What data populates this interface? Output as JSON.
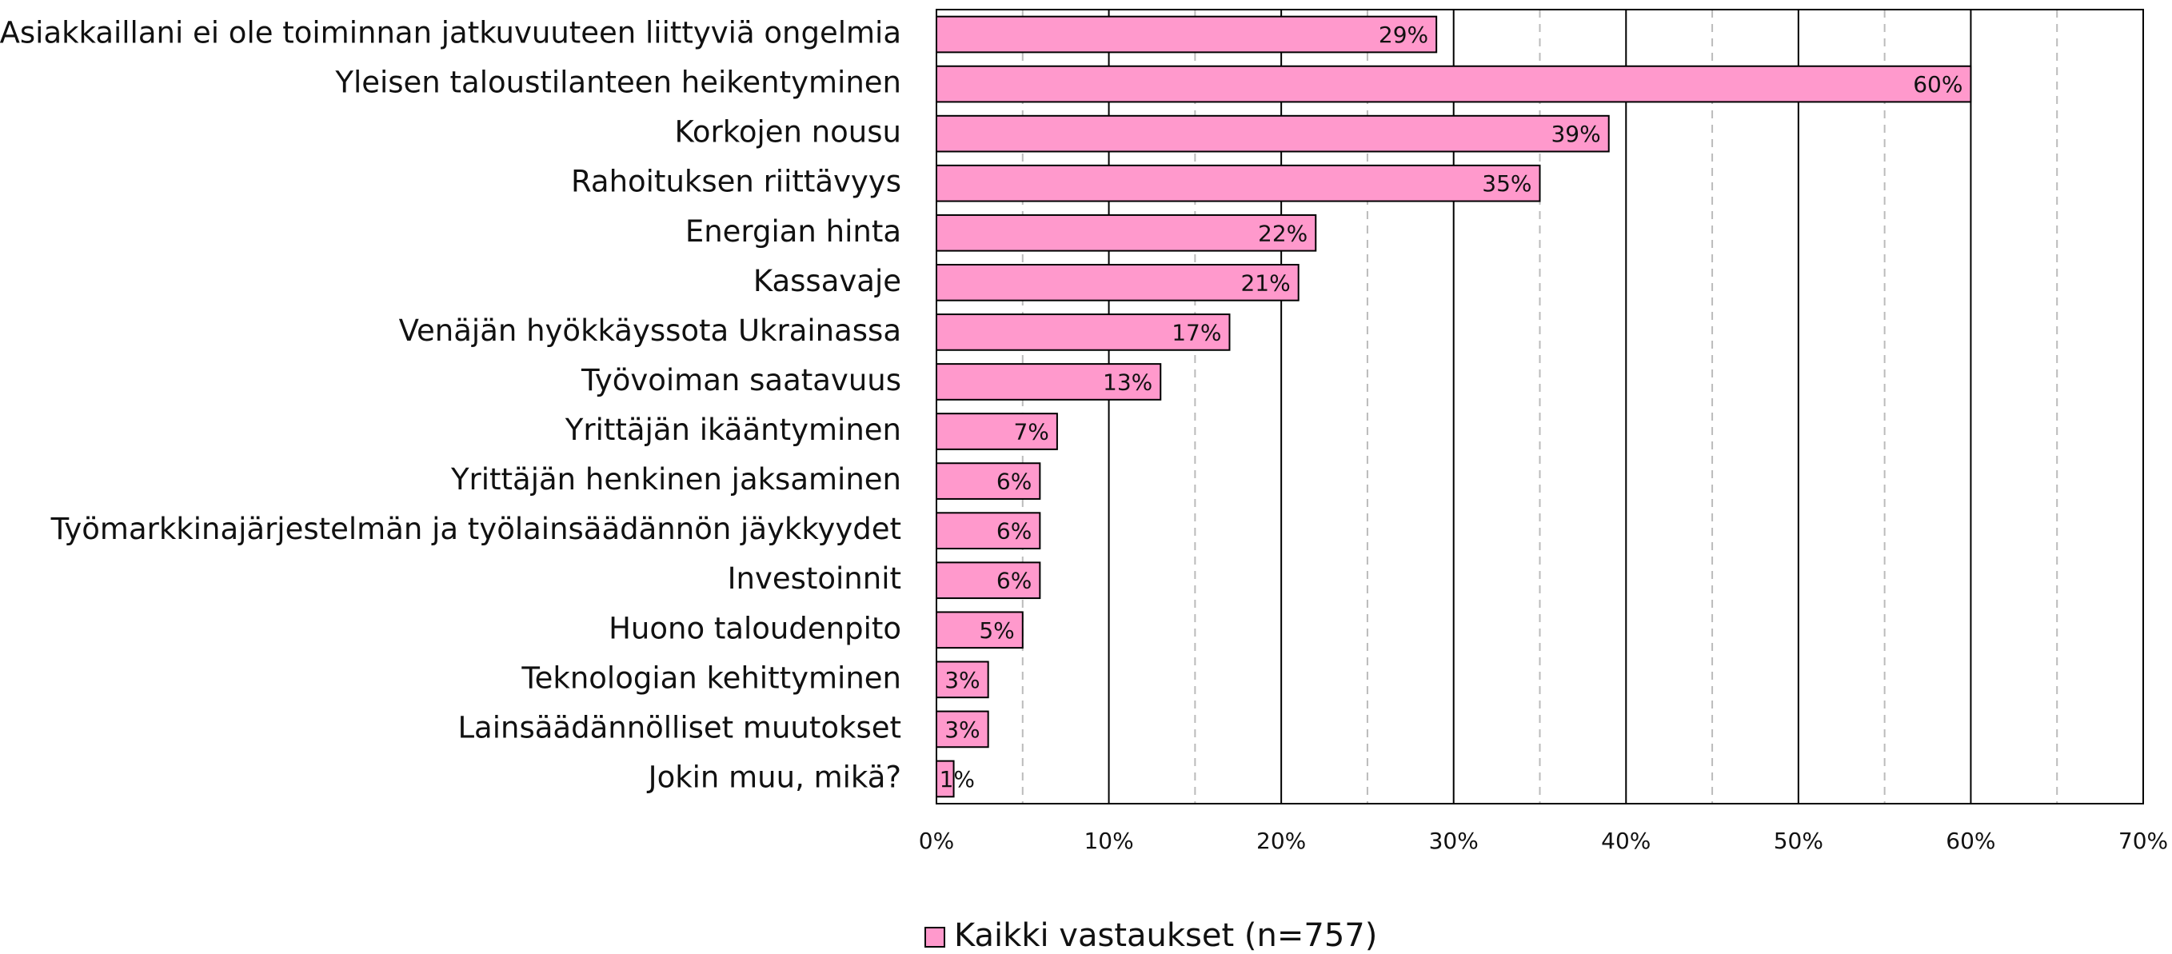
{
  "chart_data": {
    "type": "barh",
    "categories": [
      "Asiakkaillani ei ole toiminnan jatkuvuuteen liittyviä ongelmia",
      "Yleisen taloustilanteen heikentyminen",
      "Korkojen nousu",
      "Rahoituksen riittävyys",
      "Energian hinta",
      "Kassavaje",
      "Venäjän hyökkäyssota Ukrainassa",
      "Työvoiman saatavuus",
      "Yrittäjän ikääntyminen",
      "Yrittäjän henkinen jaksaminen",
      "Työmarkkinajärjestelmän ja työlainsäädännön jäykkyydet",
      "Investoinnit",
      "Huono taloudenpito",
      "Teknologian kehittyminen",
      "Lainsäädännölliset muutokset",
      "Jokin muu, mikä?"
    ],
    "series": [
      {
        "name": "Kaikki vastaukset (n=757)",
        "color": "#ff99cc",
        "values": [
          29,
          60,
          39,
          35,
          22,
          21,
          17,
          13,
          7,
          6,
          6,
          6,
          5,
          3,
          3,
          1
        ],
        "value_labels": [
          "29%",
          "60%",
          "39%",
          "35%",
          "22%",
          "21%",
          "17%",
          "13%",
          "7%",
          "6%",
          "6%",
          "6%",
          "5%",
          "3%",
          "3%",
          "1%"
        ]
      }
    ],
    "xlim": [
      0,
      70
    ],
    "xticks": [
      {
        "value": 0,
        "label": "0%"
      },
      {
        "value": 10,
        "label": "10%"
      },
      {
        "value": 20,
        "label": "20%"
      },
      {
        "value": 30,
        "label": "30%"
      },
      {
        "value": 40,
        "label": "40%"
      },
      {
        "value": 50,
        "label": "50%"
      },
      {
        "value": 60,
        "label": "60%"
      },
      {
        "value": 70,
        "label": "70%"
      }
    ],
    "xminorticks": [
      5,
      15,
      25,
      35,
      45,
      55,
      65
    ],
    "grid": true,
    "legend": "bottom"
  }
}
